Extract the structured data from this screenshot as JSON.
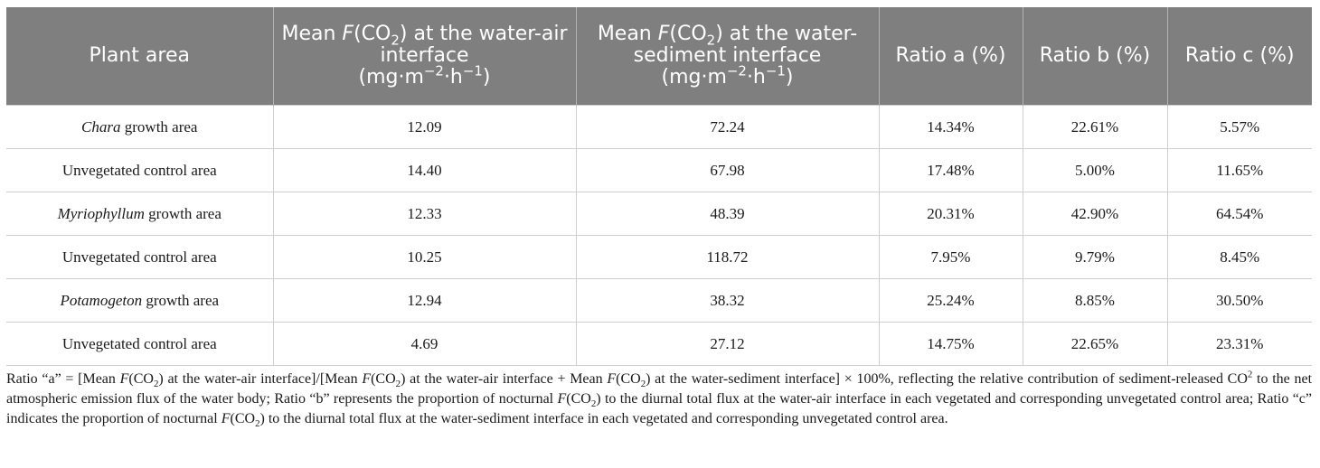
{
  "header": {
    "plant_area": "Plant area",
    "mean_prefix": "Mean ",
    "F": "F",
    "co2_open": "(CO",
    "two": "2",
    "close": ")",
    "wa_suffix": " at the water-air interface",
    "ws_suffix": " at the water-sediment interface",
    "unit_open": "(mg·m",
    "unit_m2": "−2",
    "unit_mid": "·h",
    "unit_h1": "−1",
    "unit_close": ")",
    "ratio_a": "Ratio a (%)",
    "ratio_b": "Ratio b (%)",
    "ratio_c": "Ratio c (%)"
  },
  "rows": [
    {
      "area_italic": "Chara",
      "area_rest": " growth area",
      "wa": "12.09",
      "ws": "72.24",
      "a": "14.34%",
      "b": "22.61%",
      "c": "5.57%"
    },
    {
      "area_italic": "",
      "area_rest": "Unvegetated control area",
      "wa": "14.40",
      "ws": "67.98",
      "a": "17.48%",
      "b": "5.00%",
      "c": "11.65%"
    },
    {
      "area_italic": "Myriophyllum",
      "area_rest": " growth area",
      "wa": "12.33",
      "ws": "48.39",
      "a": "20.31%",
      "b": "42.90%",
      "c": "64.54%"
    },
    {
      "area_italic": "",
      "area_rest": "Unvegetated control area",
      "wa": "10.25",
      "ws": "118.72",
      "a": "7.95%",
      "b": "9.79%",
      "c": "8.45%"
    },
    {
      "area_italic": "Potamogeton",
      "area_rest": " growth area",
      "wa": "12.94",
      "ws": "38.32",
      "a": "25.24%",
      "b": "8.85%",
      "c": "30.50%"
    },
    {
      "area_italic": "",
      "area_rest": "Unvegetated control area",
      "wa": "4.69",
      "ws": "27.12",
      "a": "14.75%",
      "b": "22.65%",
      "c": "23.31%"
    }
  ],
  "footnote": {
    "p1": "Ratio “a” = [Mean ",
    "p2": " at the water-air interface]/[Mean ",
    "p3": " at the water-air interface + Mean ",
    "p4": " at the water-sediment interface] × 100%, reflecting the relative contribution of sediment-released CO",
    "p5": " to the net atmospheric emission flux of the water body; Ratio “b” represents the proportion of nocturnal ",
    "p6": " to the diurnal total flux at the water-air interface in each vegetated and corresponding unvegetated control area; Ratio “c” indicates the proportion of nocturnal ",
    "p7": " to the diurnal total flux at the water-sediment interface in each vegetated and corresponding unvegetated control area.",
    "sup2": "2"
  }
}
